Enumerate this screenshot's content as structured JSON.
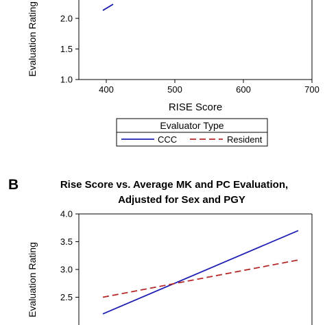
{
  "panels": [
    {
      "panel_label": "",
      "title_lines": [],
      "legend_title": "Evaluator Type"
    },
    {
      "panel_label": "B",
      "title_lines": [
        "Rise Score vs. Average MK and PC Evaluation,",
        "Adjusted for Sex and PGY"
      ],
      "legend_title": ""
    }
  ],
  "chart_data": [
    {
      "type": "line",
      "title": "",
      "xlabel": "RISE Score",
      "ylabel": "Evaluation Rating",
      "xlim": [
        360,
        700
      ],
      "ylim": [
        1.0,
        2.3
      ],
      "x_ticks": [
        400,
        500,
        600,
        700
      ],
      "y_ticks": [
        1.0,
        1.5,
        2.0
      ],
      "x_tick_labels": [
        "400",
        "500",
        "600",
        "700"
      ],
      "y_tick_labels": [
        "1.0",
        "1.5",
        "2.0"
      ],
      "grid": false,
      "legend_placement": "below",
      "legend": {
        "title": "Evaluator Type",
        "entries": [
          {
            "label": "CCC",
            "color": "#1f1fb4",
            "dash": "solid"
          },
          {
            "label": "Resident",
            "color": "#b42828",
            "dash": "dashed"
          }
        ]
      },
      "series": [
        {
          "name": "CCC",
          "color": "#1f1fb4",
          "dash": "solid",
          "x": [
            395,
            410
          ],
          "y": [
            2.13,
            2.23
          ]
        }
      ]
    },
    {
      "type": "line",
      "title": "Rise Score vs. Average MK and PC Evaluation, Adjusted for Sex and PGY",
      "xlabel": "",
      "ylabel": "Evaluation Rating",
      "xlim": [
        360,
        700
      ],
      "ylim": [
        2.0,
        4.0
      ],
      "y_ticks": [
        2.5,
        3.0,
        3.5,
        4.0
      ],
      "y_tick_labels": [
        "2.5",
        "3.0",
        "3.5",
        "4.0"
      ],
      "grid": false,
      "series": [
        {
          "name": "CCC",
          "color": "#1f1fb4",
          "dash": "solid",
          "x": [
            395,
            680
          ],
          "y": [
            2.2,
            3.7
          ]
        },
        {
          "name": "Resident",
          "color": "#b42828",
          "dash": "dashed",
          "x": [
            395,
            680
          ],
          "y": [
            2.5,
            3.17
          ]
        }
      ]
    }
  ]
}
